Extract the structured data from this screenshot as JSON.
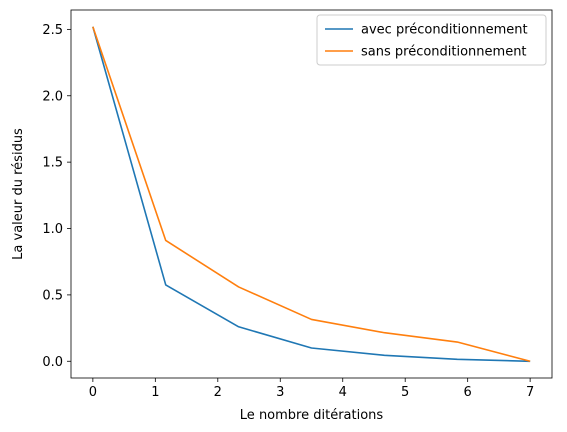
{
  "chart_data": {
    "type": "line",
    "title": "",
    "xlabel": "Le nombre ditérations",
    "ylabel": "La valeur du résidus",
    "xlim": [
      -0.35,
      7.35
    ],
    "ylim": [
      -0.126,
      2.646
    ],
    "xticks": [
      0,
      1,
      2,
      3,
      4,
      5,
      6,
      7
    ],
    "yticks": [
      0.0,
      0.5,
      1.0,
      1.5,
      2.0,
      2.5
    ],
    "ytick_labels": [
      "0.0",
      "0.5",
      "1.0",
      "1.5",
      "2.0",
      "2.5"
    ],
    "grid": false,
    "legend_position": "top-right",
    "series": [
      {
        "name": "avec préconditionnement",
        "color": "#1f77b4",
        "x": [
          0,
          1.1667,
          2.3333,
          3.5,
          4.6667,
          5.8333,
          7
        ],
        "y": [
          2.52,
          0.575,
          0.26,
          0.1,
          0.045,
          0.015,
          0.0
        ]
      },
      {
        "name": "sans préconditionnement",
        "color": "#ff7f0e",
        "x": [
          0,
          1.1667,
          2.3333,
          3.5,
          4.6667,
          5.8333,
          7
        ],
        "y": [
          2.52,
          0.91,
          0.56,
          0.315,
          0.215,
          0.145,
          0.0
        ]
      }
    ]
  }
}
